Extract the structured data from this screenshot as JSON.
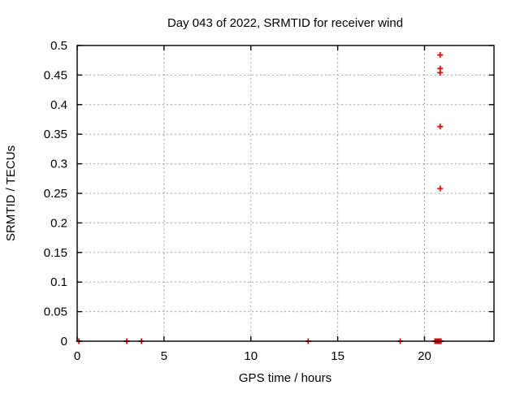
{
  "window": {
    "background": "#ffffff"
  },
  "chart_data": {
    "type": "scatter",
    "title": "Day 043 of 2022, SRMTID for receiver wind",
    "xlabel": "GPS time / hours",
    "ylabel": "SRMTID / TECUs",
    "xlim": [
      0,
      24
    ],
    "ylim": [
      0,
      0.5
    ],
    "x_ticks": {
      "values": [
        0,
        5,
        10,
        15,
        20
      ],
      "labels": [
        "0",
        "5",
        "10",
        "15",
        "20"
      ]
    },
    "y_ticks": {
      "values": [
        0,
        0.05,
        0.1,
        0.15,
        0.2,
        0.25,
        0.3,
        0.35,
        0.4,
        0.45,
        0.5
      ],
      "labels": [
        "0",
        "0.05",
        "0.1",
        "0.15",
        "0.2",
        "0.25",
        "0.3",
        "0.35",
        "0.4",
        "0.45",
        "0.5"
      ]
    },
    "grid": true,
    "legend": "none",
    "marker": "plus",
    "colors": {
      "marker": "#e60000",
      "grid": "#a0a0a0",
      "axis": "#000000"
    },
    "series": [
      {
        "name": "SRMTID",
        "points": [
          [
            0.1,
            0
          ],
          [
            2.85,
            0
          ],
          [
            3.7,
            0
          ],
          [
            13.3,
            0
          ],
          [
            18.6,
            0
          ],
          [
            20.6,
            0
          ],
          [
            20.65,
            0
          ],
          [
            20.7,
            0
          ],
          [
            20.75,
            0
          ],
          [
            20.8,
            0
          ],
          [
            20.85,
            0
          ],
          [
            20.9,
            0
          ],
          [
            20.95,
            0
          ],
          [
            20.9,
            0.258
          ],
          [
            20.9,
            0.363
          ],
          [
            20.9,
            0.454
          ],
          [
            20.9,
            0.461
          ],
          [
            20.9,
            0.484
          ]
        ]
      }
    ]
  }
}
